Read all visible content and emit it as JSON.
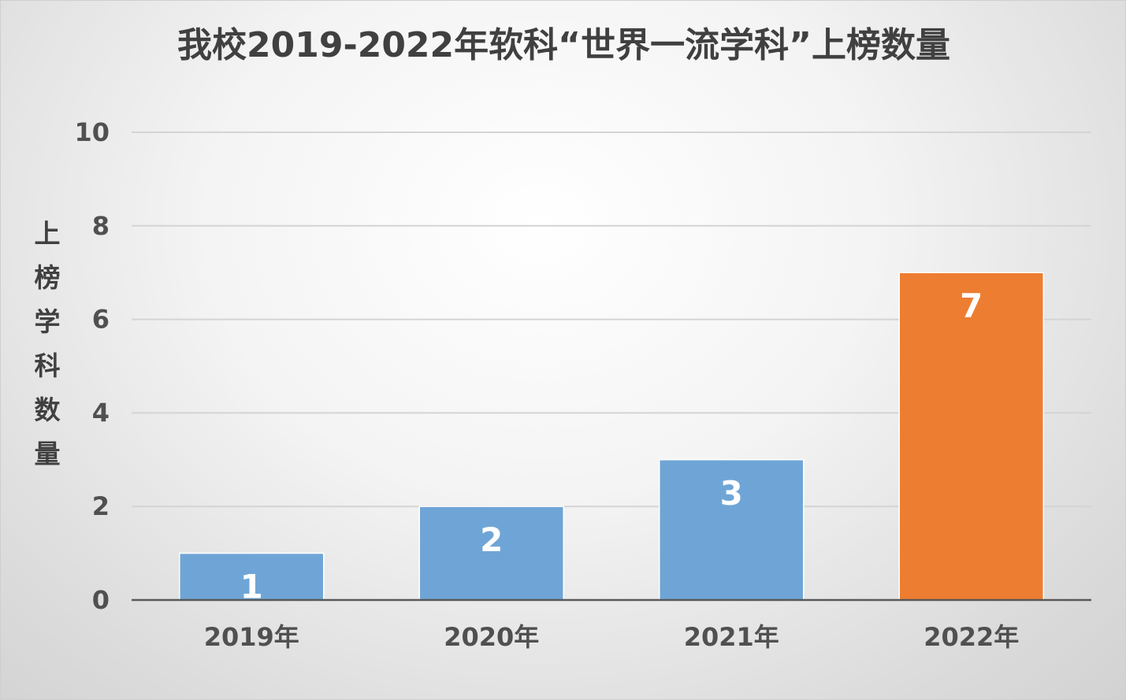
{
  "chart_data": {
    "type": "bar",
    "title": "我校2019-2022年软科“世界一流学科”上榜数量",
    "xlabel": "",
    "ylabel": "上榜学科数量",
    "categories": [
      "2019年",
      "2020年",
      "2021年",
      "2022年"
    ],
    "values": [
      1,
      2,
      3,
      7
    ],
    "data_labels": [
      "1",
      "2",
      "3",
      "7"
    ],
    "bar_colors": [
      "#6fa5d6",
      "#6fa5d6",
      "#6fa5d6",
      "#ed7d31"
    ],
    "ylim": [
      0,
      10
    ],
    "yticks": [
      0,
      2,
      4,
      6,
      8,
      10
    ],
    "ytick_labels": [
      "0",
      "2",
      "4",
      "6",
      "8",
      "10"
    ],
    "grid": true,
    "legend": "none"
  }
}
